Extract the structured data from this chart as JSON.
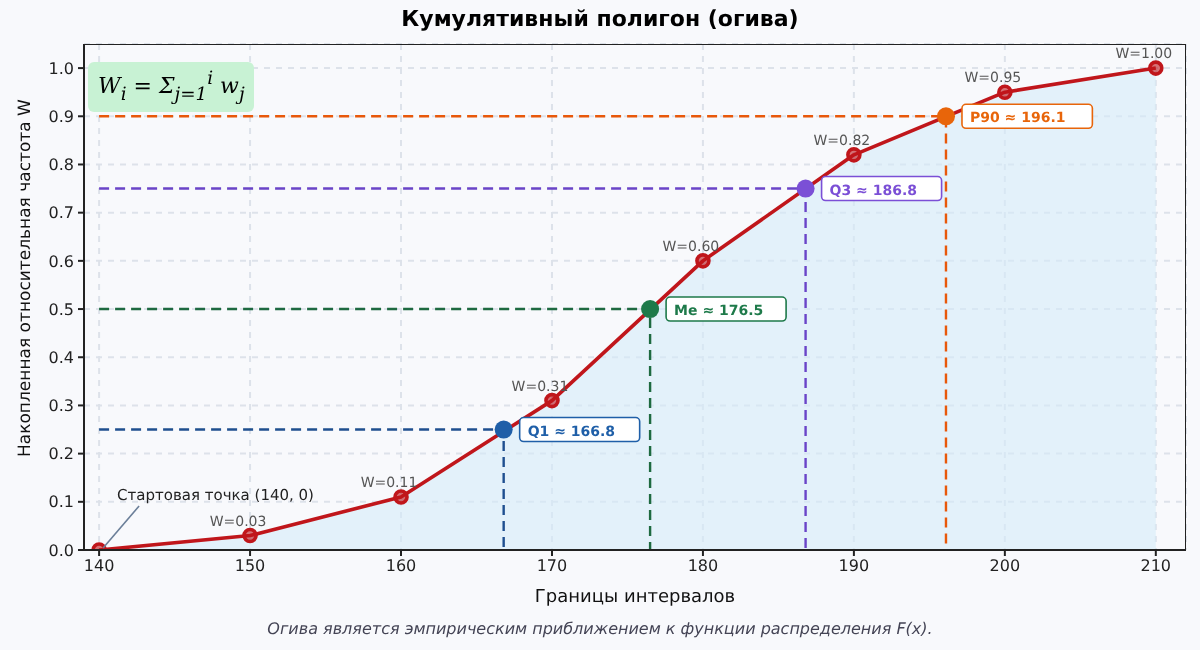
{
  "chart_data": {
    "type": "area",
    "title": "Кумулятивный полигон (огива)",
    "xlabel": "Границы интервалов",
    "ylabel": "Накопленная относительная частота W",
    "xlim": [
      139,
      212
    ],
    "xticks": [
      140,
      150,
      160,
      170,
      180,
      190,
      200,
      210
    ],
    "ylim": [
      0,
      1.05
    ],
    "yticks": [
      {
        "value": 0,
        "label": "0.0"
      },
      0.1,
      0.2,
      0.3,
      0.4,
      0.5,
      0.6,
      0.7,
      0.8,
      0.9,
      {
        "value": 1,
        "label": "1.0"
      }
    ],
    "grid": true,
    "legend": false,
    "marker": "circle",
    "series": [
      {
        "color": "#c0161b",
        "x": [
          140,
          150,
          160,
          170,
          180,
          190,
          200,
          210
        ],
        "values": [
          0,
          0.03,
          0.11,
          0.31,
          0.6,
          0.82,
          0.95,
          1
        ],
        "value_labels": [
          null,
          "W=0.03",
          "W=0.11",
          "W=0.31",
          "W=0.60",
          "W=0.82",
          "W=0.95",
          "W=1.00"
        ]
      },
      {
        "type": "line",
        "color": "#1f4f8f",
        "marker": "none",
        "line_style": "dashed",
        "x": [
          140,
          166.8,
          166.8
        ],
        "values": [
          0.25,
          0.25,
          0
        ]
      },
      {
        "type": "line",
        "color": "#1e6a40",
        "marker": "none",
        "line_style": "dashed",
        "x": [
          140,
          176.5,
          176.5
        ],
        "values": [
          0.5,
          0.5,
          0
        ]
      },
      {
        "type": "line",
        "color": "#6a44c8",
        "marker": "none",
        "line_style": "dashed",
        "x": [
          140,
          186.8,
          186.8
        ],
        "values": [
          0.75,
          0.75,
          0
        ]
      },
      {
        "type": "line",
        "color": "#e8580a",
        "marker": "none",
        "line_style": "dashed",
        "x": [
          140,
          196.1,
          196.1
        ],
        "values": [
          0.9,
          0.9,
          0
        ]
      },
      {
        "type": "scatter",
        "color": "#1f5fa8",
        "x": [
          166.8
        ],
        "values": [
          0.25
        ]
      },
      {
        "type": "scatter",
        "color": "#1e7a4a",
        "x": [
          176.5
        ],
        "values": [
          0.5
        ]
      },
      {
        "type": "scatter",
        "color": "#7b4fd6",
        "x": [
          186.8
        ],
        "values": [
          0.75
        ]
      },
      {
        "type": "scatter",
        "color": "#e8650a",
        "x": [
          196.1
        ],
        "values": [
          0.9
        ]
      }
    ],
    "annotations": [
      {
        "text": "Q1 ≈ 166.8",
        "x": 166.8,
        "y": 0.25
      },
      {
        "text": "Me ≈ 176.5",
        "x": 176.5,
        "y": 0.5
      },
      {
        "text": "Q3 ≈ 186.8",
        "x": 186.8,
        "y": 0.75
      },
      {
        "text": "P90 ≈ 196.1",
        "x": 196.1,
        "y": 0.9
      },
      {
        "text": "Стартовая точка (140, 0)",
        "x": 140,
        "y": 0
      },
      "W$_{i}$ = Σ$_{j=1}$$^{i}$ w$_{j}$",
      "Огива является эмпирическим приближением к функции распределения F(x)."
    ]
  }
}
